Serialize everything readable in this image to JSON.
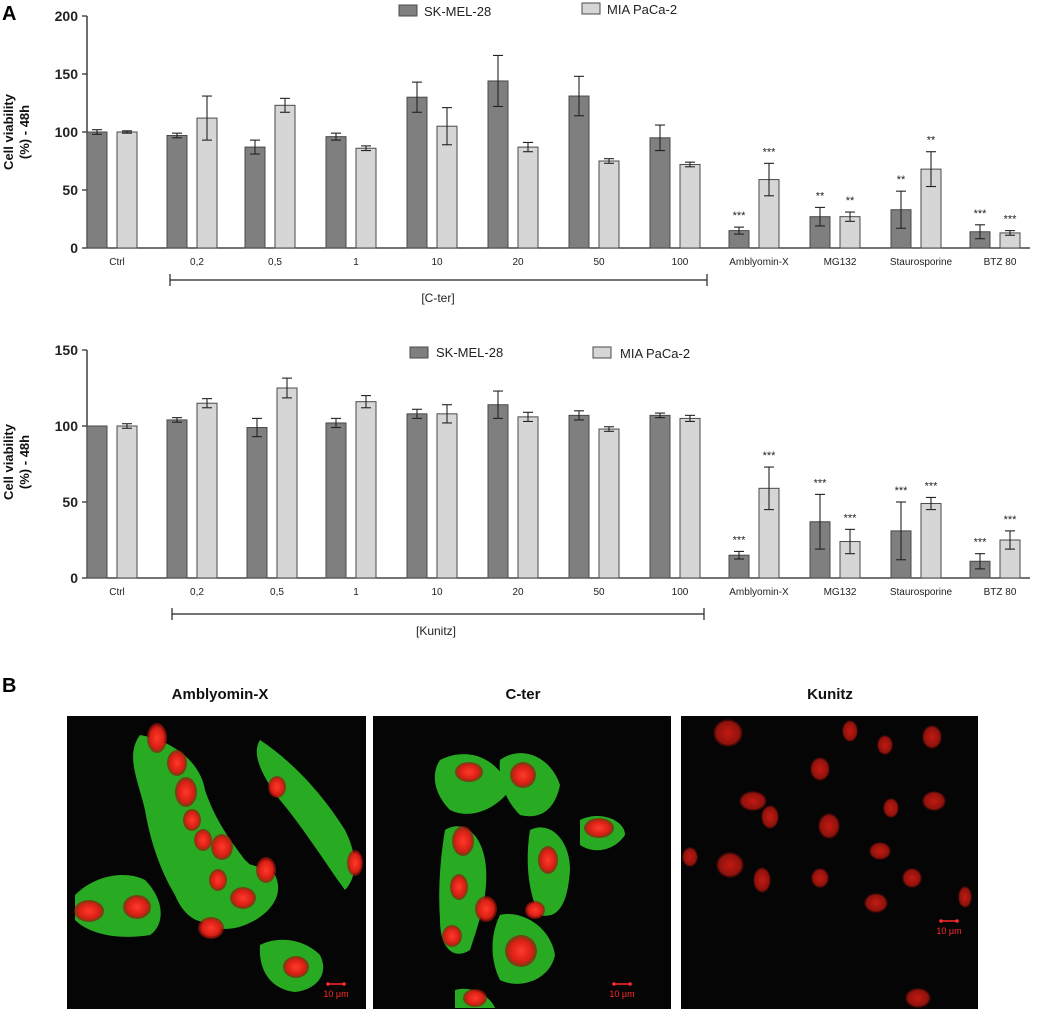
{
  "panels": {
    "a_label": "A",
    "b_label": "B"
  },
  "colors": {
    "sk_mel_28": "#7f7f7f",
    "mia_paca_2": "#d6d6d6",
    "bar_outline": "#4a4a4a",
    "nucleus_red": "#e8261c",
    "cytoplasm_green": "#2fc828",
    "micro_background": "#050505"
  },
  "chart_data": [
    {
      "type": "bar",
      "ylabel_line1": "Cell viability",
      "ylabel_line2": "(%) - 48h",
      "ylim": [
        0,
        200
      ],
      "yticks": [
        "0",
        "50",
        "100",
        "150",
        "200"
      ],
      "categories": [
        "Ctrl",
        "0,2",
        "0,5",
        "1",
        "10",
        "20",
        "50",
        "100",
        "Amblyomin-X",
        "MG132",
        "Staurosporine",
        "BTZ 80"
      ],
      "bracket_label": "[C-ter]",
      "series": [
        {
          "name": "SK-MEL-28",
          "values": [
            100,
            97,
            87,
            96,
            130,
            144,
            131,
            95,
            15,
            27,
            33,
            14
          ],
          "errors": [
            2,
            2,
            6,
            3,
            13,
            22,
            17,
            11,
            3,
            8,
            16,
            6
          ],
          "significance": [
            "",
            "",
            "",
            "",
            "",
            "",
            "",
            "",
            "***",
            "**",
            "**",
            "***"
          ]
        },
        {
          "name": "MIA PaCa-2",
          "values": [
            100,
            null,
            123,
            86,
            105,
            87,
            75,
            72,
            59,
            27,
            68,
            13
          ],
          "errors": [
            1,
            null,
            6,
            2,
            16,
            4,
            2,
            2,
            14,
            4,
            15,
            2
          ],
          "extra_value": 112,
          "extra_error": 19,
          "significance": [
            "",
            "",
            "",
            "",
            "",
            "",
            "",
            "",
            "***",
            "**",
            "**",
            "***"
          ]
        }
      ],
      "legend": [
        "SK-MEL-28",
        "MIA PaCa-2"
      ]
    },
    {
      "type": "bar",
      "ylabel_line1": "Cell viability",
      "ylabel_line2": "(%) - 48h",
      "ylim": [
        0,
        150
      ],
      "yticks": [
        "0",
        "50",
        "100",
        "150"
      ],
      "categories": [
        "Ctrl",
        "0,2",
        "0,5",
        "1",
        "10",
        "20",
        "50",
        "100",
        "Amblyomin-X",
        "MG132",
        "Staurosporine",
        "BTZ 80"
      ],
      "bracket_label": "[Kunitz]",
      "series": [
        {
          "name": "SK-MEL-28",
          "values": [
            100,
            104,
            99,
            102,
            108,
            114,
            107,
            107,
            15,
            37,
            31,
            11
          ],
          "errors": [
            0,
            1.5,
            6,
            3,
            3,
            9,
            3,
            1.5,
            2.5,
            18,
            19,
            5
          ],
          "significance": [
            "",
            "",
            "",
            "",
            "",
            "",
            "",
            "",
            "***",
            "***",
            "***",
            "***"
          ]
        },
        {
          "name": "MIA PaCa-2",
          "values": [
            100,
            115,
            125,
            116,
            108,
            106,
            98,
            105,
            59,
            24,
            49,
            25
          ],
          "errors": [
            1.5,
            3,
            6.5,
            4,
            6,
            3,
            1.5,
            2,
            14,
            8,
            4,
            6
          ],
          "significance": [
            "",
            "",
            "",
            "",
            "",
            "",
            "",
            "",
            "***",
            "***",
            "***",
            "***"
          ]
        }
      ],
      "legend": [
        "SK-MEL-28",
        "MIA PaCa-2"
      ]
    }
  ],
  "micrographs": [
    {
      "title": "Amblyomin-X",
      "scale": "10 μm"
    },
    {
      "title": "C-ter",
      "scale": "10 μm"
    },
    {
      "title": "Kunitz",
      "scale": "10 μm"
    }
  ]
}
